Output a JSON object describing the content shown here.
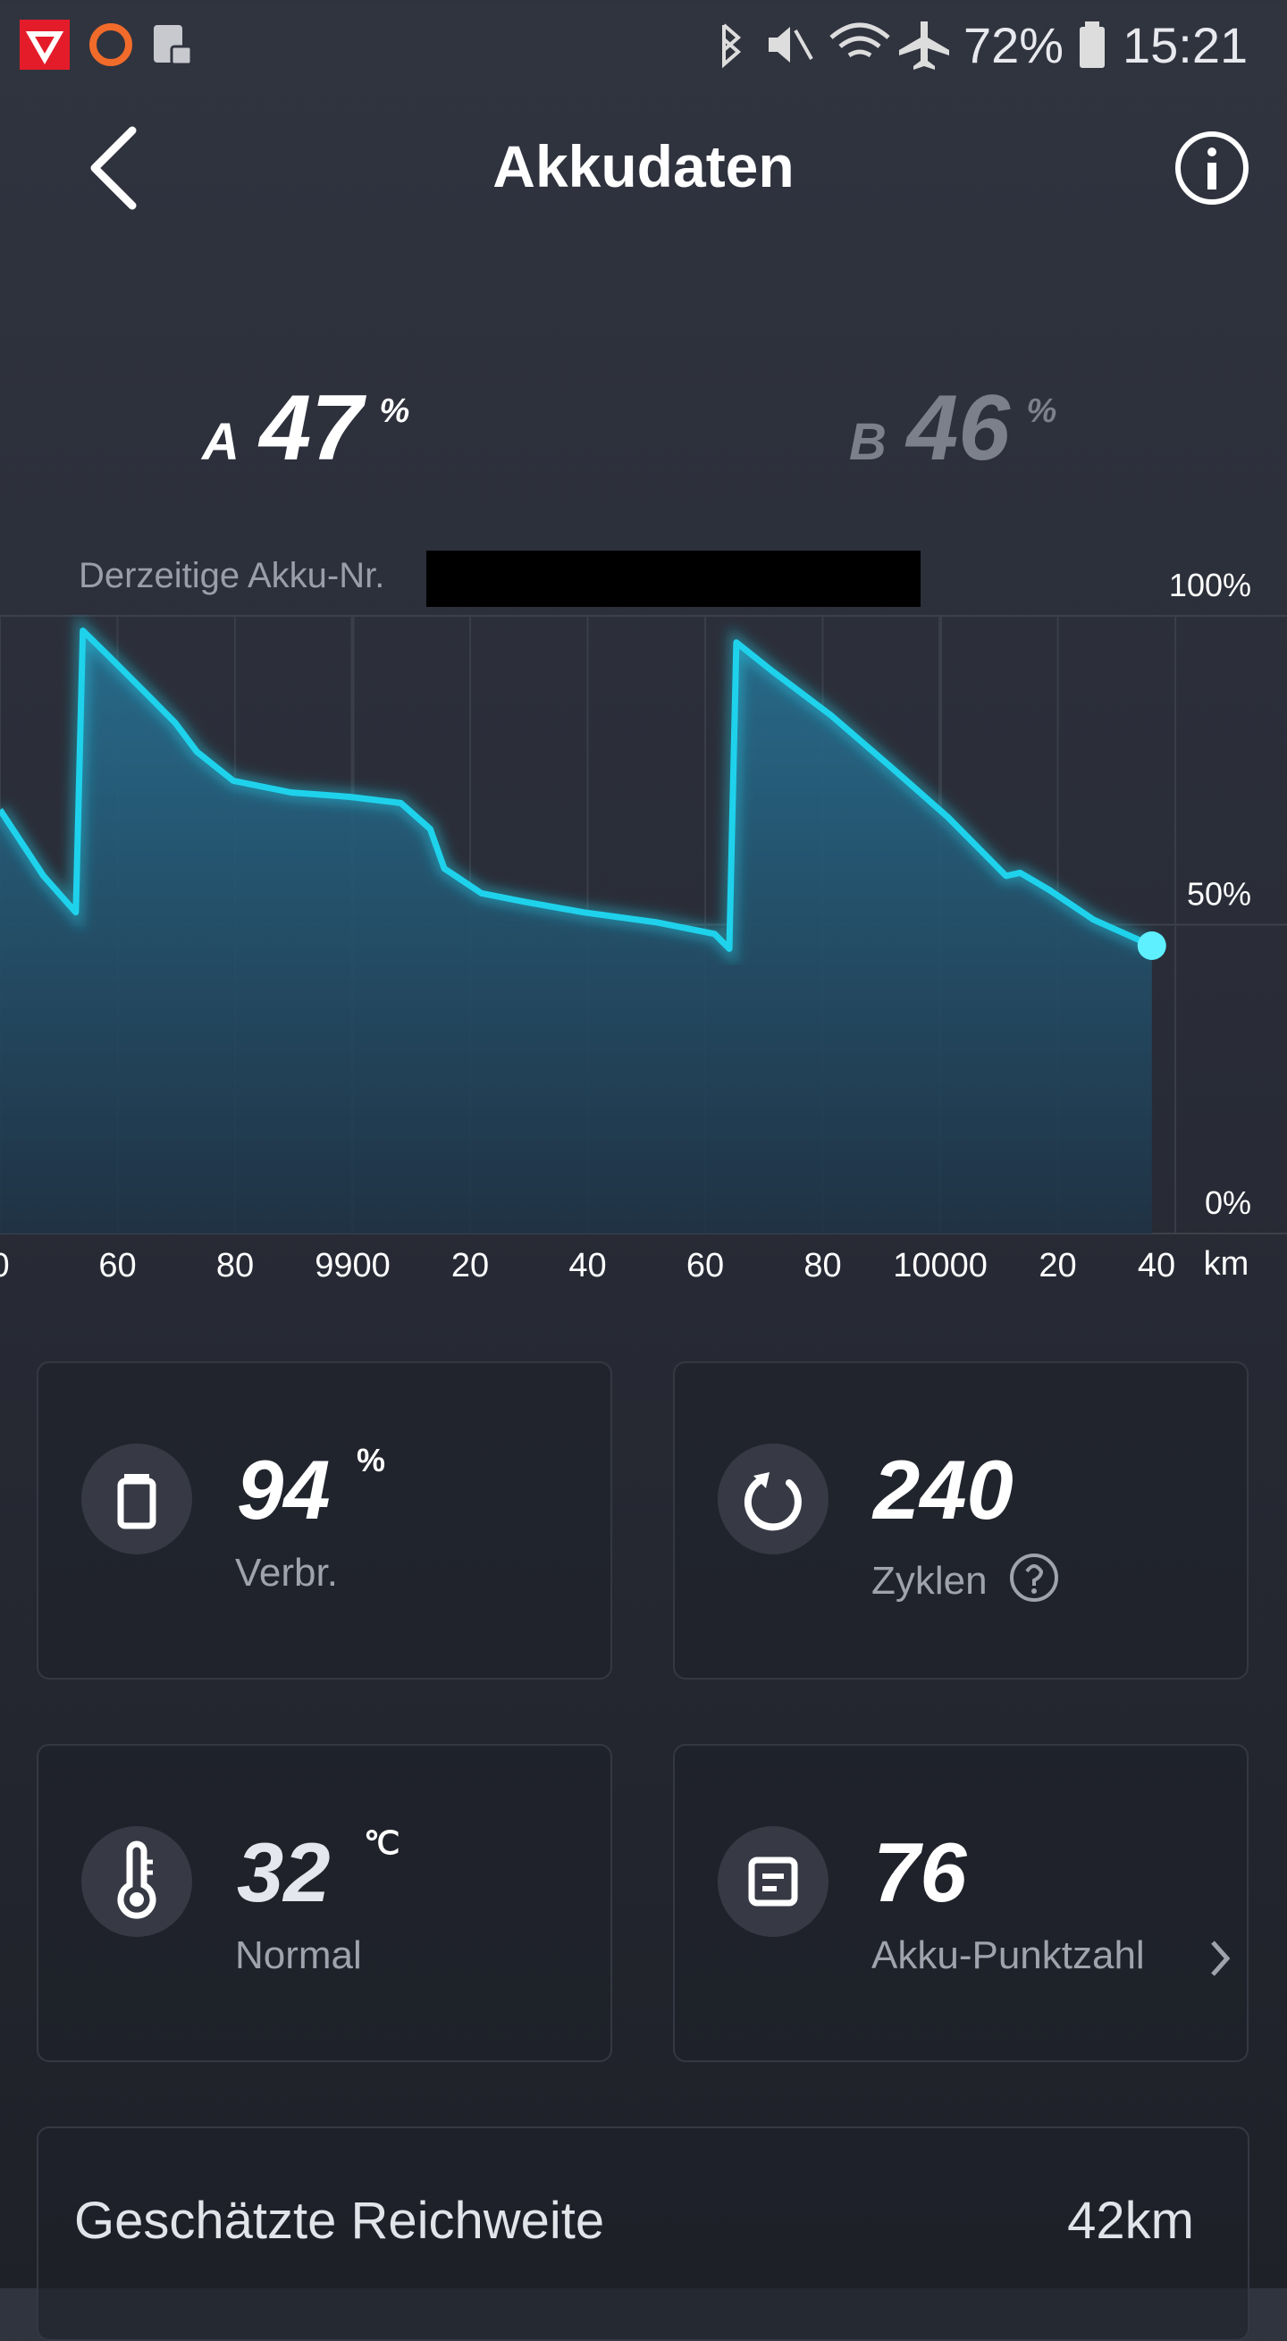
{
  "status_bar": {
    "battery": "72%",
    "time": "15:21"
  },
  "header": {
    "title": "Akkudaten"
  },
  "batteries": [
    {
      "label": "A",
      "value": 47,
      "unit": "%"
    },
    {
      "label": "B",
      "value": 46,
      "unit": "%"
    }
  ],
  "chart_data": {
    "type": "area",
    "subtitle": "Derzeitige Akku-Nr.",
    "x_label": "km",
    "x": [
      9840,
      9847.4,
      9852.9,
      9854.1,
      9858.6,
      9864.8,
      9869.8,
      9873.5,
      9879.7,
      9889.6,
      9899.5,
      9908.2,
      9913.2,
      9915.6,
      9921.9,
      9929.3,
      9939.3,
      9951.6,
      9961.6,
      9964.1,
      9965.3,
      9971.5,
      9981.4,
      9991.4,
      10001.3,
      10008.7,
      10011.2,
      10013.6,
      10018.6,
      10026.1,
      10036
    ],
    "values": [
      68.6,
      57.9,
      52,
      97.6,
      93.4,
      87.5,
      82.7,
      78,
      73.3,
      71.4,
      70.7,
      69.7,
      65.5,
      59.1,
      55.1,
      53.7,
      52,
      50.4,
      48.5,
      46.1,
      95.7,
      91,
      83.9,
      75.7,
      67.4,
      60.3,
      57.9,
      58.4,
      55.6,
      50.8,
      46.6
    ],
    "color": "#1fd2ec",
    "xlim": [
      9840,
      10059
    ],
    "xticks": [
      {
        "value": 9840,
        "label": "0"
      },
      {
        "value": 9860,
        "label": "60"
      },
      {
        "value": 9880,
        "label": "80"
      },
      9900,
      {
        "value": 9920,
        "label": "20"
      },
      {
        "value": 9940,
        "label": "40"
      },
      {
        "value": 9960,
        "label": "60"
      },
      {
        "value": 9980,
        "label": "80"
      },
      10000,
      {
        "value": 10020,
        "label": "20"
      },
      {
        "value": 10040,
        "label": "40"
      }
    ],
    "ylim": [
      0,
      100
    ],
    "yticks": [
      {
        "value": 0,
        "label": "0%"
      },
      {
        "value": 50,
        "label": "50%"
      },
      {
        "value": 100,
        "label": "100%"
      }
    ],
    "grid": true
  },
  "cards": [
    {
      "value": 94,
      "unit": "%",
      "label": "Verbr."
    },
    {
      "value": 240,
      "label": "Zyklen"
    },
    {
      "value": 32,
      "unit": "℃",
      "label": "Normal"
    },
    {
      "value": 76,
      "label": "Akku-Punktzahl"
    }
  ],
  "range": {
    "label": "Geschätzte Reichweite",
    "value": "42km"
  }
}
